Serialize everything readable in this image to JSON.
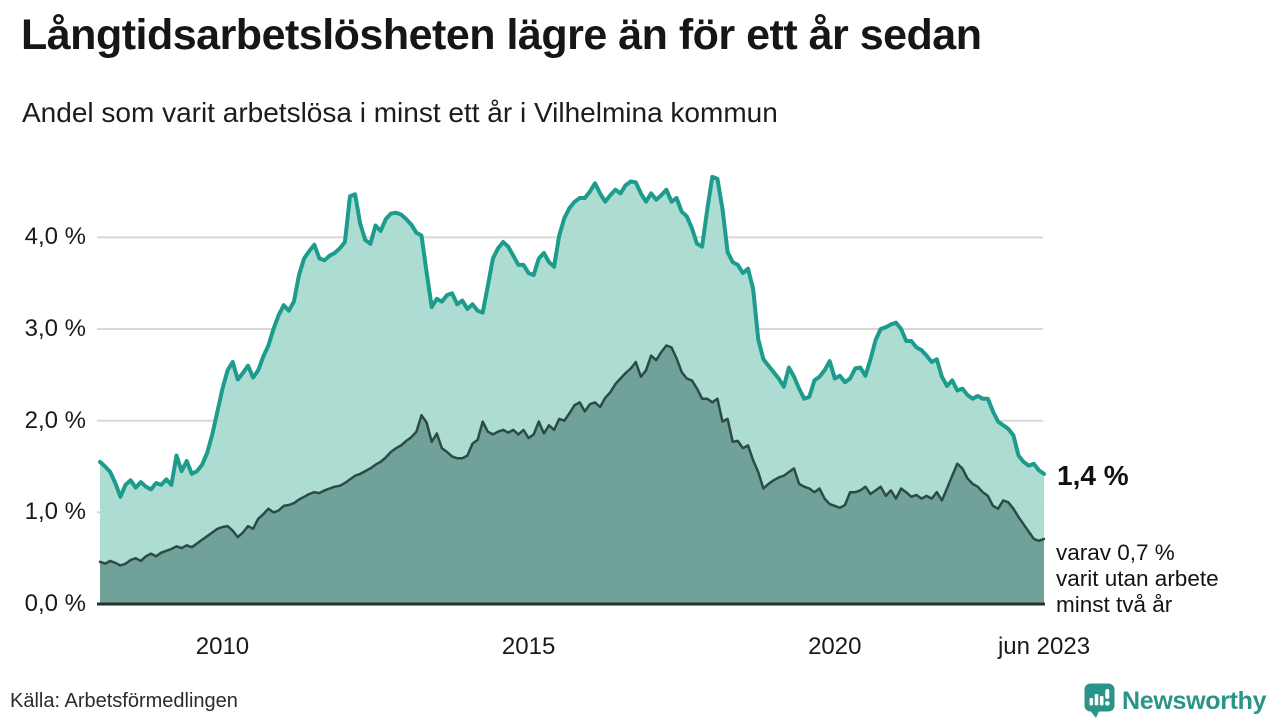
{
  "header": {
    "title": "Långtidsarbetslösheten lägre än för ett år sedan",
    "subtitle": "Andel som varit arbetslösa i minst ett år i Vilhelmina kommun"
  },
  "chart_data": {
    "type": "area",
    "title": "Långtidsarbetslösheten lägre än för ett år sedan",
    "subtitle": "Andel som varit arbetslösa i minst ett år i Vilhelmina kommun",
    "unit": "%",
    "frequency": "monthly",
    "x_range": [
      "2008-01",
      "2023-06"
    ],
    "grid": true,
    "y_axis": {
      "min": 0,
      "max": 4.8,
      "ticks": [
        {
          "label": "4,0 %",
          "value": 4.0
        },
        {
          "label": "3,0 %",
          "value": 3.0
        },
        {
          "label": "2,0 %",
          "value": 2.0
        },
        {
          "label": "1,0 %",
          "value": 1.0
        },
        {
          "label": "0,0 %",
          "value": 0.0
        }
      ]
    },
    "x_ticks": [
      {
        "label": "2010",
        "month_index": 24
      },
      {
        "label": "2015",
        "month_index": 84
      },
      {
        "label": "2020",
        "month_index": 144
      },
      {
        "label": "jun 2023",
        "month_index": 185
      }
    ],
    "series": [
      {
        "name": "Arbetslösa minst ett år",
        "end_value_label": "1,4 %",
        "values": [
          1.55,
          1.5,
          1.44,
          1.32,
          1.17,
          1.3,
          1.35,
          1.27,
          1.33,
          1.28,
          1.25,
          1.32,
          1.3,
          1.36,
          1.3,
          1.62,
          1.45,
          1.56,
          1.42,
          1.45,
          1.52,
          1.65,
          1.85,
          2.1,
          2.35,
          2.55,
          2.64,
          2.45,
          2.52,
          2.6,
          2.47,
          2.55,
          2.7,
          2.82,
          3.0,
          3.15,
          3.26,
          3.2,
          3.3,
          3.59,
          3.77,
          3.85,
          3.92,
          3.77,
          3.75,
          3.8,
          3.83,
          3.88,
          3.95,
          4.45,
          4.47,
          4.15,
          3.97,
          3.93,
          4.13,
          4.07,
          4.2,
          4.26,
          4.27,
          4.25,
          4.2,
          4.14,
          4.05,
          4.02,
          3.62,
          3.24,
          3.33,
          3.3,
          3.37,
          3.39,
          3.27,
          3.31,
          3.22,
          3.27,
          3.2,
          3.18,
          3.47,
          3.77,
          3.88,
          3.95,
          3.9,
          3.8,
          3.7,
          3.7,
          3.61,
          3.59,
          3.77,
          3.83,
          3.73,
          3.68,
          4.02,
          4.21,
          4.32,
          4.39,
          4.43,
          4.43,
          4.5,
          4.59,
          4.48,
          4.39,
          4.46,
          4.52,
          4.48,
          4.57,
          4.61,
          4.6,
          4.48,
          4.39,
          4.48,
          4.41,
          4.46,
          4.52,
          4.39,
          4.43,
          4.28,
          4.23,
          4.1,
          3.93,
          3.9,
          4.3,
          4.66,
          4.64,
          4.31,
          3.84,
          3.73,
          3.7,
          3.61,
          3.66,
          3.44,
          2.89,
          2.67,
          2.6,
          2.53,
          2.46,
          2.37,
          2.58,
          2.48,
          2.35,
          2.24,
          2.26,
          2.44,
          2.48,
          2.55,
          2.65,
          2.46,
          2.49,
          2.42,
          2.46,
          2.57,
          2.58,
          2.49,
          2.67,
          2.88,
          3.0,
          3.02,
          3.05,
          3.07,
          3.0,
          2.87,
          2.87,
          2.8,
          2.77,
          2.71,
          2.64,
          2.67,
          2.48,
          2.38,
          2.44,
          2.33,
          2.35,
          2.28,
          2.24,
          2.27,
          2.24,
          2.24,
          2.1,
          1.99,
          1.95,
          1.91,
          1.84,
          1.62,
          1.55,
          1.51,
          1.53,
          1.46,
          1.42
        ]
      },
      {
        "name": "Arbetslösa minst två år",
        "end_value_label": "0,7 %",
        "values": [
          0.46,
          0.44,
          0.47,
          0.45,
          0.42,
          0.44,
          0.48,
          0.5,
          0.47,
          0.52,
          0.55,
          0.52,
          0.56,
          0.58,
          0.6,
          0.63,
          0.61,
          0.64,
          0.62,
          0.66,
          0.7,
          0.74,
          0.78,
          0.82,
          0.84,
          0.85,
          0.8,
          0.73,
          0.78,
          0.85,
          0.82,
          0.93,
          0.98,
          1.04,
          1.0,
          1.02,
          1.07,
          1.08,
          1.1,
          1.14,
          1.17,
          1.2,
          1.22,
          1.21,
          1.24,
          1.26,
          1.28,
          1.29,
          1.32,
          1.36,
          1.4,
          1.42,
          1.45,
          1.48,
          1.52,
          1.55,
          1.6,
          1.66,
          1.7,
          1.73,
          1.78,
          1.82,
          1.88,
          2.06,
          1.98,
          1.77,
          1.86,
          1.7,
          1.66,
          1.61,
          1.59,
          1.59,
          1.62,
          1.75,
          1.79,
          1.99,
          1.88,
          1.85,
          1.88,
          1.9,
          1.87,
          1.9,
          1.85,
          1.9,
          1.81,
          1.85,
          1.99,
          1.86,
          1.95,
          1.9,
          2.02,
          2.0,
          2.08,
          2.17,
          2.2,
          2.1,
          2.18,
          2.2,
          2.15,
          2.25,
          2.31,
          2.4,
          2.46,
          2.52,
          2.57,
          2.64,
          2.48,
          2.55,
          2.71,
          2.66,
          2.75,
          2.82,
          2.8,
          2.68,
          2.53,
          2.46,
          2.44,
          2.35,
          2.24,
          2.24,
          2.2,
          2.24,
          1.99,
          2.02,
          1.77,
          1.78,
          1.7,
          1.73,
          1.57,
          1.44,
          1.26,
          1.31,
          1.35,
          1.38,
          1.4,
          1.44,
          1.48,
          1.31,
          1.28,
          1.26,
          1.22,
          1.26,
          1.15,
          1.09,
          1.07,
          1.05,
          1.08,
          1.22,
          1.22,
          1.24,
          1.28,
          1.2,
          1.24,
          1.28,
          1.18,
          1.24,
          1.15,
          1.26,
          1.22,
          1.17,
          1.19,
          1.15,
          1.18,
          1.15,
          1.22,
          1.13,
          1.26,
          1.4,
          1.53,
          1.48,
          1.37,
          1.31,
          1.28,
          1.22,
          1.18,
          1.07,
          1.04,
          1.13,
          1.11,
          1.04,
          0.95,
          0.87,
          0.79,
          0.71,
          0.69,
          0.71
        ]
      }
    ]
  },
  "annotation": {
    "value": "1,4 %",
    "note": "varav 0,7 %\nvarit utan arbete\nminst två år"
  },
  "footer": {
    "source": "Källa: Arbetsförmedlingen",
    "brand": "Newsworthy"
  },
  "colors": {
    "line_total": "#1d9c8d",
    "fill_total": "#a9dad1",
    "line_two_year": "#2d4b45",
    "fill_two_year": "#6d9e97",
    "grid": "#d8d8d8",
    "baseline": "#24312d",
    "brand_teal": "#2a9488"
  }
}
